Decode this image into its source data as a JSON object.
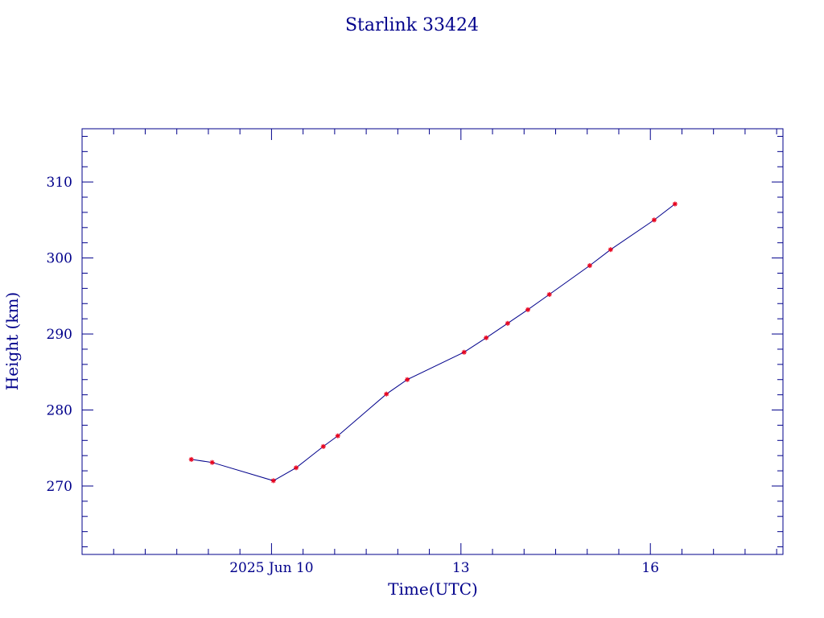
{
  "chart_data": {
    "type": "line",
    "title": "Starlink 33424",
    "xlabel": "Time(UTC)",
    "ylabel": "Height (km)",
    "x_unit": "days (June 2025, UTC)",
    "xlim": [
      7.0,
      18.1
    ],
    "ylim": [
      261.0,
      317.0
    ],
    "x_ticks": [
      {
        "value": 10,
        "label": "2025 Jun 10"
      },
      {
        "value": 13,
        "label": "13"
      },
      {
        "value": 16,
        "label": "16"
      }
    ],
    "y_ticks": [
      270,
      280,
      290,
      300,
      310
    ],
    "grid": false,
    "legend": "none",
    "series": [
      {
        "line_color": "#00008b",
        "marker_color": "#e8001c",
        "marker": "star",
        "x": [
          8.73,
          9.06,
          10.03,
          10.39,
          10.82,
          11.05,
          11.82,
          12.15,
          13.05,
          13.4,
          13.74,
          14.06,
          14.4,
          15.04,
          15.37,
          16.06,
          16.39
        ],
        "y": [
          273.5,
          273.1,
          270.7,
          272.4,
          275.2,
          276.6,
          282.1,
          284.0,
          287.6,
          289.5,
          291.4,
          293.2,
          295.2,
          299.0,
          301.1,
          305.0,
          307.1
        ]
      }
    ]
  }
}
